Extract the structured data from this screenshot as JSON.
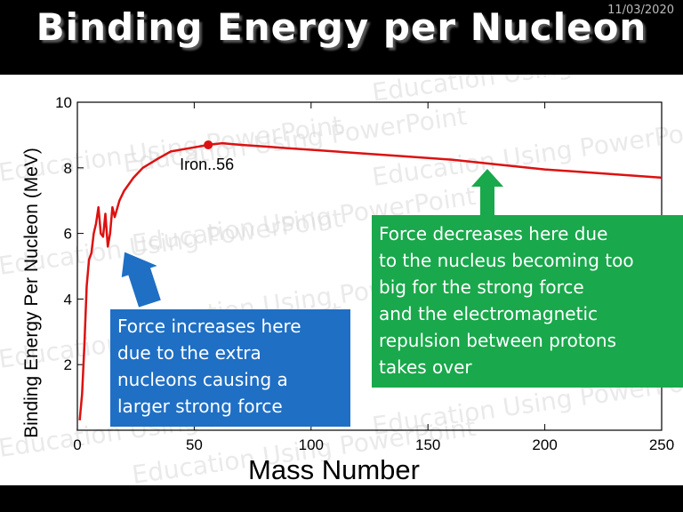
{
  "slide": {
    "title": "Binding Energy per Nucleon",
    "date": "11/03/2020"
  },
  "watermark": "Education Using PowerPoint",
  "chart_data": {
    "type": "line",
    "title": "",
    "xlabel": "Mass Number",
    "ylabel": "Binding Energy Per Nucleon (MeV)",
    "xlim": [
      0,
      250
    ],
    "ylim": [
      0,
      10
    ],
    "xticks": [
      0,
      50,
      100,
      150,
      200,
      250
    ],
    "xtick_labels": [
      "0",
      "50",
      "100",
      "150",
      "200",
      "250"
    ],
    "yticks": [
      2,
      4,
      6,
      8,
      10
    ],
    "ytick_labels": [
      "2",
      "4",
      "6",
      "8",
      "10"
    ],
    "grid": false,
    "series_color": "#dd1111",
    "series": [
      {
        "name": "",
        "points": [
          [
            1,
            0.3
          ],
          [
            2,
            1.1
          ],
          [
            3,
            2.6
          ],
          [
            4,
            4.4
          ],
          [
            5,
            5.2
          ],
          [
            6,
            5.4
          ],
          [
            7,
            6.0
          ],
          [
            8,
            6.3
          ],
          [
            9,
            6.8
          ],
          [
            10,
            6.0
          ],
          [
            11,
            5.9
          ],
          [
            12,
            6.6
          ],
          [
            13,
            5.6
          ],
          [
            14,
            6.0
          ],
          [
            15,
            6.8
          ],
          [
            16,
            6.5
          ],
          [
            18,
            7.0
          ],
          [
            20,
            7.3
          ],
          [
            24,
            7.7
          ],
          [
            28,
            8.0
          ],
          [
            35,
            8.3
          ],
          [
            40,
            8.5
          ],
          [
            48,
            8.6
          ],
          [
            56,
            8.7
          ],
          [
            62,
            8.75
          ],
          [
            70,
            8.7
          ],
          [
            80,
            8.65
          ],
          [
            90,
            8.6
          ],
          [
            100,
            8.55
          ],
          [
            120,
            8.45
          ],
          [
            140,
            8.35
          ],
          [
            160,
            8.25
          ],
          [
            180,
            8.1
          ],
          [
            200,
            7.95
          ],
          [
            220,
            7.85
          ],
          [
            240,
            7.75
          ],
          [
            250,
            7.7
          ]
        ]
      }
    ],
    "annotations": [
      {
        "label": "Iron..56",
        "x": 56,
        "y": 8.7
      }
    ]
  },
  "callouts": {
    "left": {
      "lines": [
        "Force increases here",
        "due to the extra",
        "nucleons causing a",
        "larger strong force"
      ],
      "color": "#1f6fc4"
    },
    "right": {
      "lines": [
        "Force decreases here due",
        "to the nucleus becoming too",
        "big for the strong force",
        "and the electromagnetic",
        "repulsion between protons",
        "takes over"
      ],
      "color": "#19a84b"
    }
  }
}
